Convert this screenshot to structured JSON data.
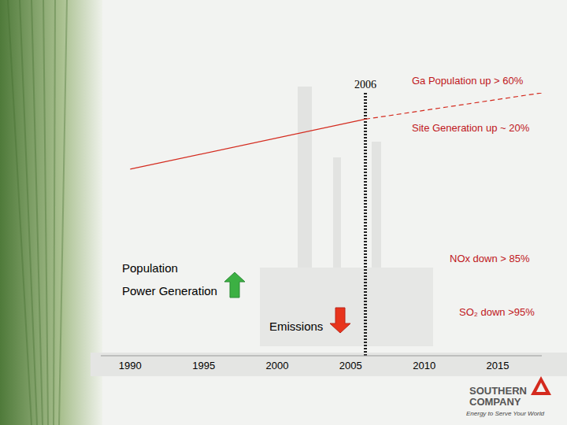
{
  "chart_data": {
    "type": "line",
    "x": [
      1990,
      2006,
      2018
    ],
    "series": [
      {
        "values": [
          71,
          90,
          null
        ],
        "color": "#d42a1e",
        "line_style": "solid"
      },
      {
        "values": [
          null,
          90,
          100
        ],
        "color": "#d42a1e",
        "line_style": "dashed"
      }
    ],
    "xlim": [
      1988,
      2018
    ],
    "xticks": [
      1990,
      1995,
      2000,
      2005,
      2010,
      2015
    ],
    "ylim": [
      0,
      100
    ],
    "tick_labels": "x",
    "grid": false,
    "reference_line": {
      "x": 2006,
      "label": "2006"
    },
    "annotations": [
      {
        "text": "Ga Population up > 60%",
        "color": "#c0161b"
      },
      {
        "text": "Site Generation up ~ 20%",
        "color": "#c0161b"
      },
      {
        "text": "NOx down > 85%",
        "color": "#c0161b"
      },
      {
        "text": "SO₂ down >95%",
        "color": "#c0161b"
      }
    ],
    "indicators": [
      {
        "labels": [
          "Population",
          "Power Generation"
        ],
        "marker": "arrow_up",
        "color": "#3cb043"
      },
      {
        "labels": [
          "Emissions"
        ],
        "marker": "arrow_down",
        "color": "#e8341c"
      }
    ]
  },
  "logo": {
    "name": "SOUTHERN COMPANY",
    "tagline": "Energy to Serve Your World"
  }
}
